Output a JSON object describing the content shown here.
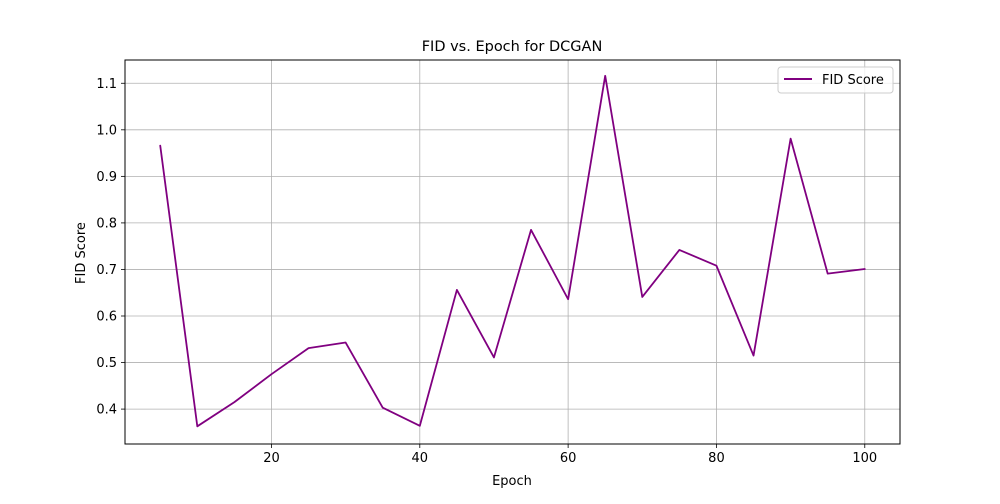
{
  "chart_data": {
    "type": "line",
    "title": "FID vs. Epoch for DCGAN",
    "xlabel": "Epoch",
    "ylabel": "FID Score",
    "xlim": [
      0.25,
      104.75
    ],
    "ylim": [
      0.325,
      1.15
    ],
    "xticks": [
      20,
      40,
      60,
      80,
      100
    ],
    "yticks": [
      0.4,
      0.5,
      0.6,
      0.7,
      0.8,
      0.9,
      1.0,
      1.1
    ],
    "xtick_labels": [
      "20",
      "40",
      "60",
      "80",
      "100"
    ],
    "ytick_labels": [
      "0.4",
      "0.5",
      "0.6",
      "0.7",
      "0.8",
      "0.9",
      "1.0",
      "1.1"
    ],
    "grid": true,
    "legend_position": "top-right",
    "x": [
      5,
      10,
      15,
      20,
      25,
      30,
      35,
      40,
      45,
      50,
      55,
      60,
      65,
      70,
      75,
      80,
      85,
      90,
      95,
      100
    ],
    "series": [
      {
        "name": "FID Score",
        "color": "#800080",
        "values": [
          0.966,
          0.363,
          0.415,
          0.475,
          0.531,
          0.543,
          0.403,
          0.364,
          0.656,
          0.511,
          0.785,
          0.636,
          1.116,
          0.641,
          0.742,
          0.708,
          0.515,
          0.981,
          0.691,
          0.701
        ]
      }
    ]
  }
}
